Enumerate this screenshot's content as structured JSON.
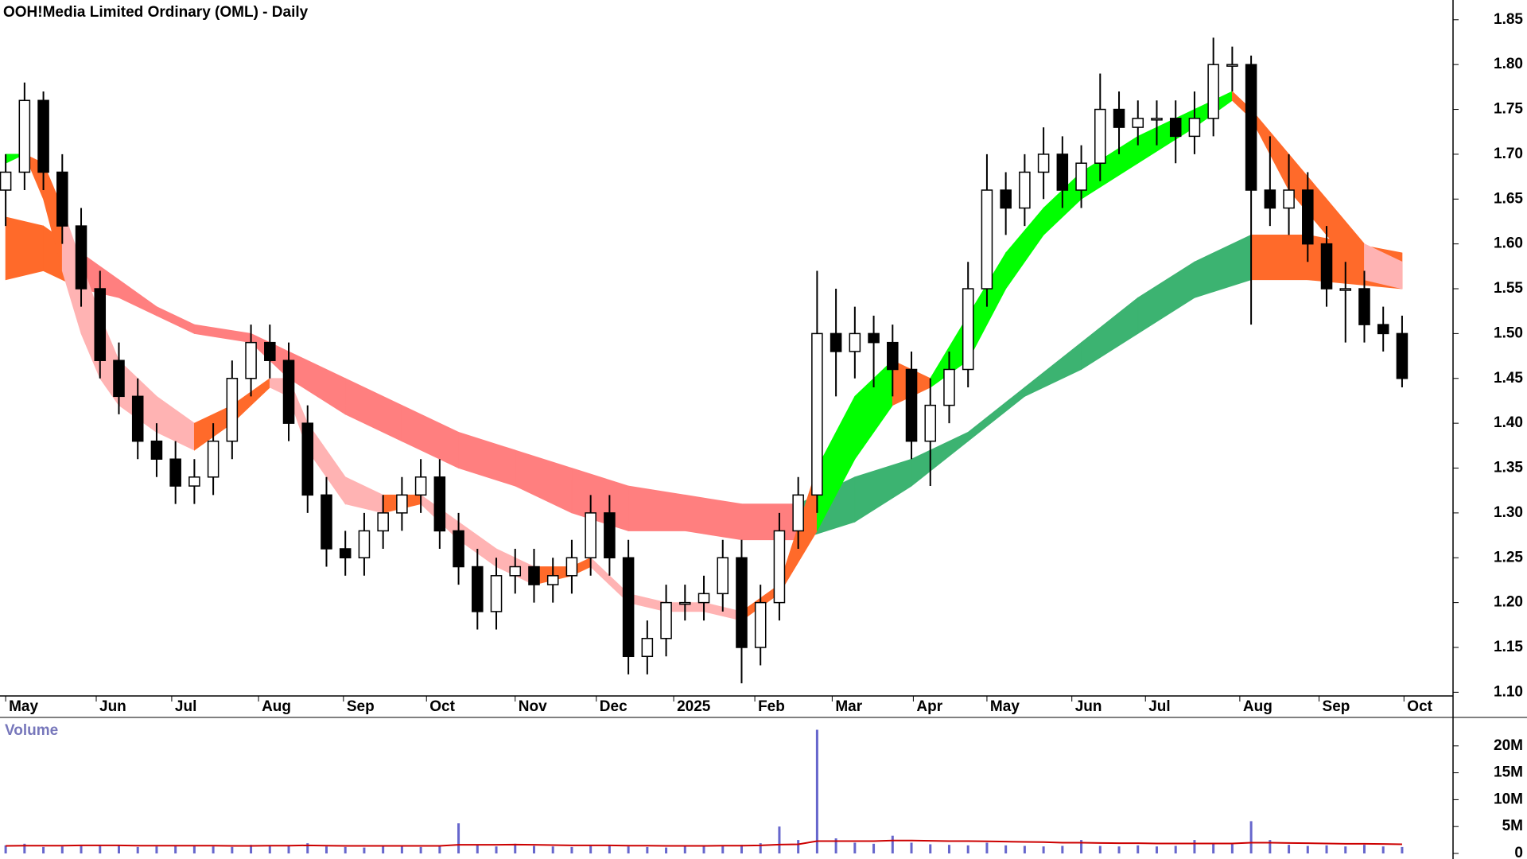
{
  "chart_data": [
    {
      "type": "candlestick",
      "title": "OOH!Media Limited Ordinary (OML) - Daily",
      "x": [
        0,
        1,
        2,
        3,
        4,
        5,
        6,
        7,
        8,
        9,
        10,
        11,
        12,
        13,
        14,
        15,
        16,
        17,
        18,
        19,
        20,
        21,
        22,
        23,
        24,
        25,
        26,
        27,
        28,
        29,
        30,
        31,
        32,
        33,
        34,
        35,
        36,
        37,
        38,
        39,
        40,
        41,
        42,
        43,
        44,
        45,
        46,
        47,
        48,
        49,
        50,
        51,
        52,
        53,
        54,
        55,
        56,
        57,
        58,
        59,
        60,
        61,
        62,
        63,
        64,
        65,
        66,
        67,
        68,
        69,
        70,
        71,
        72,
        73,
        74
      ],
      "open": [
        1.66,
        1.68,
        1.76,
        1.68,
        1.62,
        1.55,
        1.47,
        1.43,
        1.38,
        1.36,
        1.33,
        1.34,
        1.38,
        1.45,
        1.49,
        1.47,
        1.4,
        1.32,
        1.26,
        1.25,
        1.28,
        1.3,
        1.32,
        1.34,
        1.28,
        1.24,
        1.19,
        1.23,
        1.24,
        1.22,
        1.23,
        1.25,
        1.3,
        1.25,
        1.14,
        1.16,
        1.2,
        1.2,
        1.21,
        1.25,
        1.15,
        1.2,
        1.28,
        1.32,
        1.5,
        1.48,
        1.5,
        1.49,
        1.46,
        1.38,
        1.42,
        1.46,
        1.55,
        1.66,
        1.64,
        1.68,
        1.7,
        1.66,
        1.69,
        1.75,
        1.73,
        1.74,
        1.74,
        1.72,
        1.74,
        1.8,
        1.8,
        1.66,
        1.64,
        1.66,
        1.6,
        1.55,
        1.55,
        1.51,
        1.5
      ],
      "high": [
        1.7,
        1.78,
        1.77,
        1.7,
        1.64,
        1.57,
        1.49,
        1.45,
        1.4,
        1.38,
        1.36,
        1.4,
        1.47,
        1.51,
        1.51,
        1.49,
        1.42,
        1.34,
        1.28,
        1.3,
        1.32,
        1.34,
        1.36,
        1.36,
        1.3,
        1.26,
        1.25,
        1.26,
        1.26,
        1.25,
        1.27,
        1.32,
        1.32,
        1.27,
        1.18,
        1.22,
        1.22,
        1.23,
        1.27,
        1.27,
        1.22,
        1.3,
        1.34,
        1.57,
        1.55,
        1.53,
        1.52,
        1.51,
        1.48,
        1.45,
        1.48,
        1.58,
        1.7,
        1.68,
        1.7,
        1.73,
        1.72,
        1.71,
        1.79,
        1.77,
        1.76,
        1.76,
        1.76,
        1.77,
        1.83,
        1.82,
        1.81,
        1.72,
        1.7,
        1.68,
        1.62,
        1.58,
        1.57,
        1.53,
        1.52
      ],
      "low": [
        1.62,
        1.66,
        1.66,
        1.6,
        1.53,
        1.45,
        1.41,
        1.36,
        1.34,
        1.31,
        1.31,
        1.32,
        1.36,
        1.43,
        1.45,
        1.38,
        1.3,
        1.24,
        1.23,
        1.23,
        1.26,
        1.28,
        1.3,
        1.26,
        1.22,
        1.17,
        1.17,
        1.21,
        1.2,
        1.2,
        1.21,
        1.23,
        1.23,
        1.12,
        1.12,
        1.14,
        1.18,
        1.18,
        1.19,
        1.11,
        1.13,
        1.18,
        1.26,
        1.3,
        1.43,
        1.45,
        1.44,
        1.43,
        1.36,
        1.33,
        1.4,
        1.44,
        1.53,
        1.61,
        1.62,
        1.65,
        1.64,
        1.64,
        1.67,
        1.7,
        1.71,
        1.71,
        1.69,
        1.7,
        1.72,
        1.77,
        1.51,
        1.62,
        1.61,
        1.58,
        1.53,
        1.49,
        1.49,
        1.48,
        1.44
      ],
      "close": [
        1.68,
        1.76,
        1.68,
        1.62,
        1.55,
        1.47,
        1.43,
        1.38,
        1.36,
        1.33,
        1.34,
        1.38,
        1.45,
        1.49,
        1.47,
        1.4,
        1.32,
        1.26,
        1.25,
        1.28,
        1.3,
        1.32,
        1.34,
        1.28,
        1.24,
        1.19,
        1.23,
        1.24,
        1.22,
        1.23,
        1.25,
        1.3,
        1.25,
        1.14,
        1.16,
        1.2,
        1.2,
        1.21,
        1.25,
        1.15,
        1.2,
        1.28,
        1.32,
        1.5,
        1.48,
        1.5,
        1.49,
        1.46,
        1.38,
        1.42,
        1.46,
        1.55,
        1.66,
        1.64,
        1.68,
        1.7,
        1.66,
        1.69,
        1.75,
        1.73,
        1.74,
        1.74,
        1.72,
        1.74,
        1.8,
        1.8,
        1.66,
        1.64,
        1.66,
        1.6,
        1.55,
        1.55,
        1.51,
        1.5,
        1.45
      ],
      "ribbons": [
        {
          "x": [
            0,
            1,
            2,
            3,
            4,
            5,
            6,
            8,
            10,
            12,
            14,
            15,
            16,
            18,
            20,
            22,
            24,
            26,
            28,
            30,
            31,
            33,
            35,
            37,
            39,
            41,
            43,
            45,
            47,
            49,
            51,
            53,
            55,
            57,
            60,
            63,
            65,
            66,
            68,
            70,
            72,
            74
          ],
          "upper": [
            1.7,
            1.7,
            1.69,
            1.64,
            1.58,
            1.52,
            1.47,
            1.43,
            1.4,
            1.42,
            1.45,
            1.45,
            1.4,
            1.34,
            1.32,
            1.32,
            1.29,
            1.26,
            1.24,
            1.24,
            1.25,
            1.21,
            1.2,
            1.2,
            1.19,
            1.22,
            1.35,
            1.43,
            1.47,
            1.45,
            1.52,
            1.59,
            1.64,
            1.68,
            1.72,
            1.75,
            1.77,
            1.75,
            1.7,
            1.65,
            1.6,
            1.58
          ],
          "lower": [
            1.69,
            1.7,
            1.65,
            1.57,
            1.5,
            1.45,
            1.42,
            1.39,
            1.37,
            1.4,
            1.44,
            1.43,
            1.37,
            1.31,
            1.3,
            1.31,
            1.27,
            1.24,
            1.22,
            1.23,
            1.24,
            1.2,
            1.19,
            1.19,
            1.18,
            1.21,
            1.28,
            1.36,
            1.42,
            1.44,
            1.47,
            1.55,
            1.61,
            1.65,
            1.69,
            1.73,
            1.76,
            1.74,
            1.66,
            1.61,
            1.56,
            1.55
          ],
          "colors": {
            "rising": "#00ff00",
            "falling": "#ffb3b3",
            "cross": "#ff6a2a"
          }
        },
        {
          "x": [
            0,
            2,
            4,
            6,
            8,
            10,
            13,
            15,
            18,
            21,
            24,
            27,
            30,
            33,
            36,
            39,
            42,
            45,
            48,
            51,
            54,
            57,
            60,
            63,
            66,
            69,
            74
          ],
          "upper": [
            1.63,
            1.62,
            1.59,
            1.56,
            1.53,
            1.51,
            1.5,
            1.48,
            1.45,
            1.42,
            1.39,
            1.37,
            1.35,
            1.33,
            1.32,
            1.31,
            1.31,
            1.34,
            1.36,
            1.39,
            1.44,
            1.49,
            1.54,
            1.58,
            1.61,
            1.61,
            1.59
          ],
          "lower": [
            1.56,
            1.57,
            1.55,
            1.54,
            1.52,
            1.5,
            1.49,
            1.45,
            1.41,
            1.38,
            1.35,
            1.33,
            1.3,
            1.28,
            1.28,
            1.27,
            1.27,
            1.29,
            1.33,
            1.38,
            1.43,
            1.46,
            1.5,
            1.54,
            1.56,
            1.56,
            1.55
          ],
          "colors": {
            "rising": "#3cb371",
            "falling": "#ff7f7f",
            "cross": "#ff6a2a"
          }
        }
      ],
      "xlim": [
        -0.3,
        76.7
      ],
      "xticks": [
        {
          "value": 0,
          "label": "May"
        },
        {
          "value": 4.8,
          "label": "Jun"
        },
        {
          "value": 8.8,
          "label": "Jul"
        },
        {
          "value": 13.4,
          "label": "Aug"
        },
        {
          "value": 17.9,
          "label": "Sep"
        },
        {
          "value": 22.3,
          "label": "Oct"
        },
        {
          "value": 27.0,
          "label": "Nov"
        },
        {
          "value": 31.3,
          "label": "Dec"
        },
        {
          "value": 35.4,
          "label": "2025"
        },
        {
          "value": 39.7,
          "label": "Feb"
        },
        {
          "value": 43.8,
          "label": "Mar"
        },
        {
          "value": 48.1,
          "label": "Apr"
        },
        {
          "value": 52.0,
          "label": "May"
        },
        {
          "value": 56.5,
          "label": "Jun"
        },
        {
          "value": 60.4,
          "label": "Jul"
        },
        {
          "value": 65.4,
          "label": "Aug"
        },
        {
          "value": 69.6,
          "label": "Sep"
        },
        {
          "value": 74.1,
          "label": "Oct"
        }
      ],
      "ylim": [
        1.095,
        1.872
      ],
      "yticks": [
        {
          "value": 1.1,
          "label": "1.10"
        },
        1.15,
        {
          "value": 1.2,
          "label": "1.20"
        },
        1.25,
        {
          "value": 1.3,
          "label": "1.30"
        },
        1.35,
        {
          "value": 1.4,
          "label": "1.40"
        },
        1.45,
        {
          "value": 1.5,
          "label": "1.50"
        },
        1.55,
        {
          "value": 1.6,
          "label": "1.60"
        },
        1.65,
        {
          "value": 1.7,
          "label": "1.70"
        },
        1.75,
        {
          "value": 1.8,
          "label": "1.80"
        },
        1.85
      ]
    },
    {
      "type": "bar",
      "title": "Volume",
      "color": "#6666cc",
      "values": [
        1500000,
        1800000,
        1200000,
        1300000,
        1600000,
        1400000,
        1500000,
        1200000,
        1300000,
        1400000,
        1500000,
        1300000,
        1200000,
        1600000,
        1500000,
        1400000,
        1900000,
        1300000,
        1200000,
        1100000,
        1400000,
        1300000,
        1200000,
        1500000,
        5600000,
        1600000,
        1300000,
        1800000,
        1400000,
        1300000,
        1200000,
        1400000,
        1600000,
        1300000,
        1200000,
        1100000,
        1300000,
        1400000,
        1500000,
        1600000,
        1900000,
        5000000,
        2500000,
        23000000,
        2800000,
        2000000,
        1800000,
        3300000,
        2000000,
        1700000,
        1600000,
        1500000,
        2000000,
        1500000,
        1400000,
        1300000,
        1400000,
        2500000,
        1400000,
        1300000,
        1500000,
        1300000,
        1400000,
        2500000,
        2000000,
        1700000,
        6000000,
        2500000,
        1600000,
        1400000,
        1500000,
        1300000,
        1600000,
        1300000,
        1200000
      ],
      "average": {
        "color": "#cc0000",
        "values": [
          1400000,
          1450000,
          1450000,
          1450000,
          1500000,
          1500000,
          1500000,
          1450000,
          1450000,
          1450000,
          1450000,
          1450000,
          1400000,
          1400000,
          1450000,
          1450000,
          1500000,
          1450000,
          1400000,
          1400000,
          1400000,
          1400000,
          1400000,
          1400000,
          1600000,
          1600000,
          1600000,
          1650000,
          1600000,
          1550000,
          1500000,
          1500000,
          1500000,
          1450000,
          1450000,
          1400000,
          1400000,
          1400000,
          1450000,
          1450000,
          1500000,
          1650000,
          1700000,
          2300000,
          2300000,
          2300000,
          2300000,
          2400000,
          2400000,
          2350000,
          2300000,
          2300000,
          2250000,
          2200000,
          2150000,
          2100000,
          2000000,
          2000000,
          1950000,
          1900000,
          1900000,
          1850000,
          1850000,
          1850000,
          1850000,
          1850000,
          2000000,
          2000000,
          1950000,
          1900000,
          1850000,
          1800000,
          1800000,
          1750000,
          1700000
        ]
      },
      "ylim": [
        0,
        25000000
      ],
      "yticks": [
        0,
        {
          "value": 5000000,
          "label": "5M"
        },
        {
          "value": 10000000,
          "label": "10M"
        },
        {
          "value": 15000000,
          "label": "15M"
        },
        {
          "value": 20000000,
          "label": "20M"
        }
      ]
    }
  ]
}
